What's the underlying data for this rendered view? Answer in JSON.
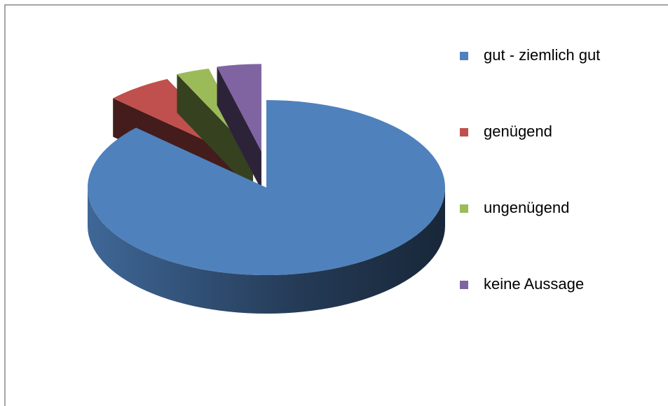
{
  "chart_data": {
    "type": "pie",
    "categories": [
      "gut - ziemlich gut",
      "genügend",
      "ungenügend",
      "keine Aussage"
    ],
    "values": [
      87,
      6,
      3,
      4
    ],
    "colors": [
      "#4f81bd",
      "#c0504d",
      "#9bbb59",
      "#8064a2"
    ],
    "legend": "right"
  }
}
